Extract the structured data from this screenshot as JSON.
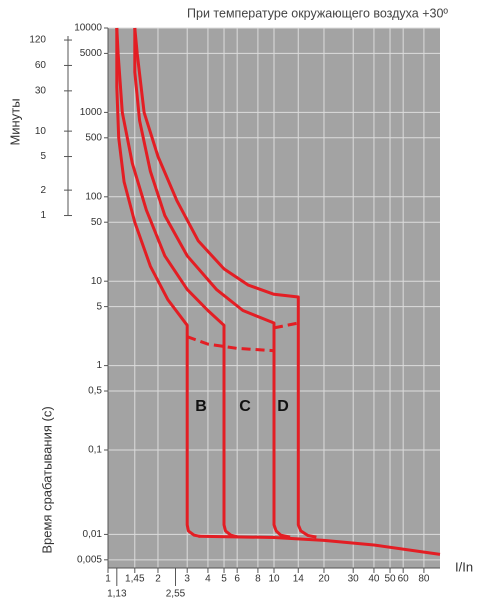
{
  "chart_data": {
    "type": "line",
    "title": "При температуре окружающего воздуха +30º",
    "y_label": "Время срабатывания (с)",
    "y2_label": "Минуты",
    "x_label": "I/In",
    "log_x": true,
    "log_y": true,
    "grid": true,
    "xlim": [
      1,
      100
    ],
    "ylim": [
      0.004,
      10000
    ],
    "y2lim": [
      6.67e-05,
      166.667
    ],
    "xticks": [
      1,
      {
        "value": 1.45,
        "label": "1,45"
      },
      2,
      3,
      4,
      5,
      6,
      8,
      10,
      14,
      20,
      30,
      40,
      50,
      60,
      80
    ],
    "xticks2": [
      {
        "value": 1.13,
        "label": "1,13"
      },
      {
        "value": 2.55,
        "label": "2,55"
      }
    ],
    "yticks": [
      10000,
      5000,
      1000,
      500,
      100,
      50,
      10,
      5,
      1,
      {
        "value": 0.5,
        "label": "0,5"
      },
      {
        "value": 0.1,
        "label": "0,1"
      },
      {
        "value": 0.01,
        "label": "0,01"
      },
      {
        "value": 0.005,
        "label": "0,005"
      }
    ],
    "y2ticks": [
      120,
      60,
      30,
      10,
      5,
      2,
      1
    ],
    "annotations": [
      "B",
      "C",
      "D"
    ],
    "series": [
      {
        "color": "#e31e24",
        "x": [
          1.13,
          1.13,
          1.16,
          1.25,
          1.45,
          1.8,
          2.3,
          3,
          3,
          3.05,
          3.3,
          3.6
        ],
        "y": [
          10000,
          2000,
          500,
          150,
          50,
          15,
          6,
          3,
          0.013,
          0.011,
          0.0098,
          0.0095
        ]
      },
      {
        "color": "#e31e24",
        "x": [
          1.13,
          1.15,
          1.22,
          1.4,
          1.7,
          2.2,
          3,
          4,
          5,
          5,
          5.1,
          5.5,
          6
        ],
        "y": [
          10000,
          5000,
          1000,
          250,
          70,
          20,
          8,
          4.5,
          3,
          0.013,
          0.011,
          0.0098,
          0.0094
        ]
      },
      {
        "color": "#e31e24",
        "x": [
          1.45,
          1.45,
          1.55,
          1.8,
          2.2,
          3,
          4.5,
          6.5,
          10,
          10,
          10.3,
          11,
          12.5
        ],
        "y": [
          10000,
          3000,
          800,
          200,
          60,
          20,
          8,
          4.5,
          3.2,
          0.013,
          0.011,
          0.0098,
          0.0093
        ]
      },
      {
        "color": "#e31e24",
        "x": [
          1.45,
          1.5,
          1.65,
          2,
          2.6,
          3.5,
          5,
          7,
          10,
          14,
          14,
          14.5,
          16,
          18
        ],
        "y": [
          10000,
          5000,
          1000,
          300,
          90,
          30,
          14,
          9,
          7,
          6.5,
          0.013,
          0.011,
          0.0097,
          0.0093
        ]
      },
      {
        "color": "#e31e24",
        "x": [
          3.5,
          10,
          20,
          40,
          100
        ],
        "y": [
          0.0095,
          0.0092,
          0.0085,
          0.0075,
          0.0058
        ]
      },
      {
        "color": "#e31e24",
        "dash": true,
        "x": [
          3,
          4,
          6,
          10
        ],
        "y": [
          2.2,
          1.8,
          1.6,
          1.5
        ]
      },
      {
        "color": "#e31e24",
        "dash": true,
        "x": [
          10,
          14
        ],
        "y": [
          2.8,
          3.2
        ]
      }
    ]
  }
}
